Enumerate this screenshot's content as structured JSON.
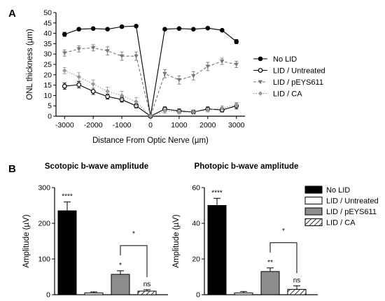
{
  "panel_labels": [
    "A",
    "B"
  ],
  "chart_data": [
    {
      "type": "line",
      "title": "",
      "xlabel": "Distance From Optic Nerve (µm)",
      "ylabel": "ONL thickness (µm)",
      "xlim": [
        -3300,
        3300
      ],
      "ylim": [
        0,
        50
      ],
      "xticks": [
        -3000,
        -2000,
        -1000,
        0,
        1000,
        2000,
        3000
      ],
      "yticks": [
        0,
        5,
        10,
        15,
        20,
        25,
        30,
        35,
        40,
        45,
        50
      ],
      "x": [
        -3000,
        -2500,
        -2000,
        -1500,
        -1000,
        -500,
        0,
        500,
        1000,
        1500,
        2000,
        2500,
        3000
      ],
      "legend_position": "right",
      "series": [
        {
          "name": "No LID",
          "color": "#000000",
          "marker": "circle-filled",
          "dash": "solid",
          "values": [
            39.5,
            42,
            42.3,
            42,
            43.2,
            43.5,
            0,
            42,
            42.3,
            42,
            42.5,
            41.5,
            36
          ],
          "errors": [
            1,
            0.6,
            0.6,
            0.5,
            0.6,
            0.6,
            0,
            0.6,
            0.6,
            0.5,
            0.5,
            0.6,
            1
          ]
        },
        {
          "name": "LID / Untreated",
          "color": "#000000",
          "marker": "circle-open",
          "dash": "solid",
          "values": [
            14.5,
            15.2,
            12,
            9.5,
            8,
            5,
            0,
            3.5,
            2.5,
            2,
            3.5,
            3,
            5
          ],
          "errors": [
            1.5,
            1.5,
            1.5,
            1.2,
            1.2,
            1,
            0,
            1,
            1,
            1,
            1,
            1,
            1.5
          ]
        },
        {
          "name": "LID / pEYS611",
          "color": "#777777",
          "marker": "triangle-down",
          "dash": "dash",
          "values": [
            30.5,
            32.5,
            33,
            31.5,
            29,
            29,
            0,
            20.5,
            17.5,
            19.5,
            24,
            26.5,
            25
          ],
          "errors": [
            1.5,
            1.5,
            1.5,
            2,
            2,
            2,
            0,
            2,
            2,
            2,
            2,
            1.5,
            1.5
          ]
        },
        {
          "name": "LID / CA",
          "color": "#999999",
          "marker": "diamond",
          "dash": "dot",
          "values": [
            22,
            19,
            15.5,
            12,
            10,
            7,
            0,
            2.5,
            2,
            2,
            3,
            4,
            5.5
          ],
          "errors": [
            1.5,
            2,
            2,
            2,
            2,
            2,
            0,
            1,
            1,
            1,
            1,
            1,
            1
          ]
        }
      ]
    },
    {
      "type": "bar",
      "title": "Scotopic b-wave amplitude",
      "xlabel": "",
      "ylabel": "Amplitude (µV)",
      "ylim": [
        0,
        300
      ],
      "yticks": [
        0,
        100,
        200,
        300
      ],
      "categories": [
        "No LID",
        "LID / Untreated",
        "LID / pEYS611",
        "LID / CA"
      ],
      "values": [
        235,
        5,
        57,
        10
      ],
      "errors": [
        25,
        3,
        10,
        4
      ],
      "significance": [
        "****",
        "",
        "*",
        "ns"
      ],
      "bracket": {
        "between": [
          "LID / pEYS611",
          "LID / CA"
        ],
        "label": "*"
      }
    },
    {
      "type": "bar",
      "title": "Photopic b-wave amplitude",
      "xlabel": "",
      "ylabel": "Amplitude (µV)",
      "ylim": [
        0,
        60
      ],
      "yticks": [
        0,
        20,
        40,
        60
      ],
      "categories": [
        "No LID",
        "LID / Untreated",
        "LID / pEYS611",
        "LID / CA"
      ],
      "values": [
        50,
        1,
        13,
        3
      ],
      "errors": [
        4,
        0.8,
        2,
        2
      ],
      "significance": [
        "****",
        "",
        "**",
        "ns"
      ],
      "bracket": {
        "between": [
          "LID / pEYS611",
          "LID / CA"
        ],
        "label": "*"
      }
    }
  ],
  "bar_legend": [
    {
      "name": "No LID",
      "fill": "black"
    },
    {
      "name": "LID / Untreated",
      "fill": "white"
    },
    {
      "name": "LID / pEYS611",
      "fill": "gray"
    },
    {
      "name": "LID / CA",
      "fill": "hatched"
    }
  ],
  "colors": {
    "bar_black": "#000000",
    "bar_gray": "#8c8c8c",
    "bar_white": "#ffffff"
  }
}
